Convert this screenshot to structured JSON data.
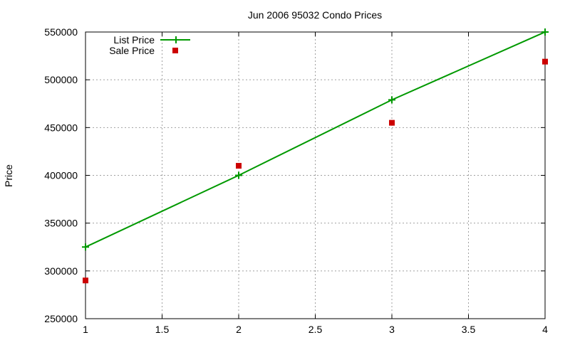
{
  "chart_data": {
    "type": "line",
    "title": "Jun 2006 95032 Condo Prices",
    "xlabel": "",
    "ylabel": "Price",
    "xlim": [
      1,
      4
    ],
    "ylim": [
      250000,
      550000
    ],
    "xticks": [
      "1",
      "1.5",
      "2",
      "2.5",
      "3",
      "3.5",
      "4"
    ],
    "yticks": [
      "250000",
      "300000",
      "350000",
      "400000",
      "450000",
      "500000",
      "550000"
    ],
    "grid": true,
    "legend_position": "top-left",
    "series": [
      {
        "name": "List Price",
        "style": "line-with-plus-markers",
        "color": "#009900",
        "x": [
          1,
          2,
          3,
          4
        ],
        "y": [
          325000,
          400000,
          479000,
          550000
        ]
      },
      {
        "name": "Sale Price",
        "style": "square-markers",
        "color": "#cc0000",
        "x": [
          1,
          2,
          3,
          4
        ],
        "y": [
          290000,
          410000,
          455000,
          519000
        ]
      }
    ]
  }
}
